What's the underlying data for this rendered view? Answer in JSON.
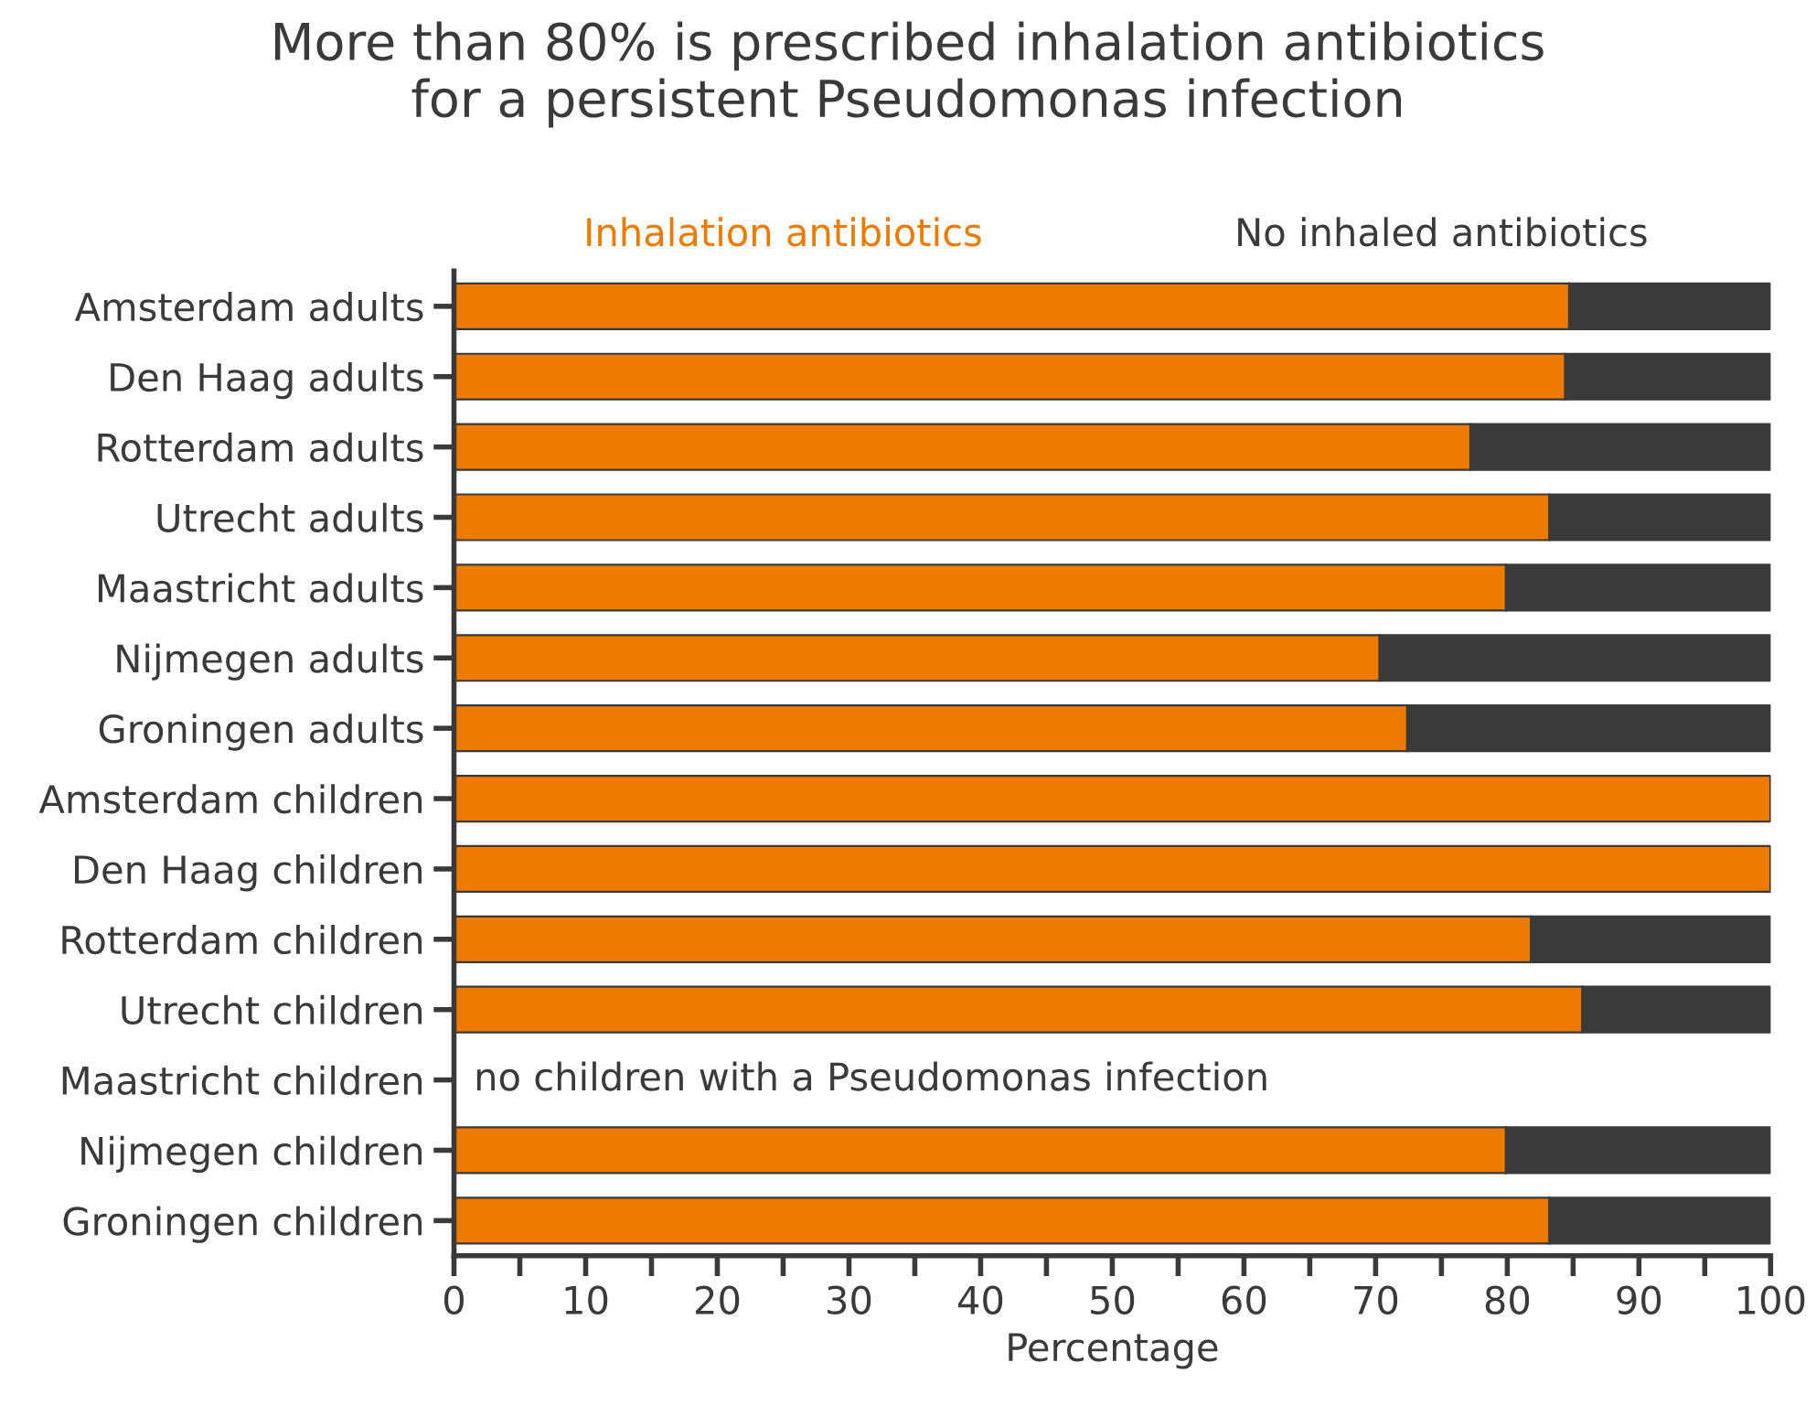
{
  "chart_data": {
    "type": "bar",
    "orientation": "horizontal",
    "stacked": true,
    "title": "More than 80% is prescribed inhalation antibiotics\nfor a persistent Pseudomonas infection",
    "xlabel": "Percentage",
    "categories": [
      "Amsterdam adults",
      "Den Haag adults",
      "Rotterdam adults",
      "Utrecht adults",
      "Maastricht adults",
      "Nijmegen adults",
      "Groningen adults",
      "Amsterdam children",
      "Den Haag children",
      "Rotterdam children",
      "Utrecht children",
      "Maastricht children",
      "Nijmegen children",
      "Groningen children"
    ],
    "series": [
      {
        "name": "Inhalation antibiotics",
        "color": "#ee7a00",
        "values": [
          84.7,
          84.4,
          77.2,
          83.2,
          79.9,
          70.3,
          72.4,
          100,
          100,
          81.8,
          85.7,
          null,
          79.9,
          83.2
        ]
      },
      {
        "name": "No inhaled antibiotics",
        "color": "#3a3a3a",
        "values": [
          15.3,
          15.6,
          22.8,
          16.8,
          20.1,
          29.7,
          27.6,
          0,
          0,
          18.2,
          14.3,
          null,
          20.1,
          16.8
        ]
      }
    ],
    "annotations": [
      "no children with a Pseudomonas infection"
    ],
    "xlim": [
      0,
      100
    ],
    "xticks": [
      0,
      {
        "value": 5,
        "label": null
      },
      10,
      {
        "value": 15,
        "label": null
      },
      20,
      {
        "value": 25,
        "label": null
      },
      30,
      {
        "value": 35,
        "label": null
      },
      40,
      {
        "value": 45,
        "label": null
      },
      50,
      {
        "value": 55,
        "label": null
      },
      60,
      {
        "value": 65,
        "label": null
      },
      70,
      {
        "value": 75,
        "label": null
      },
      80,
      {
        "value": 85,
        "label": null
      },
      90,
      {
        "value": 95,
        "label": null
      },
      100
    ],
    "legend": "top",
    "grid": false
  }
}
